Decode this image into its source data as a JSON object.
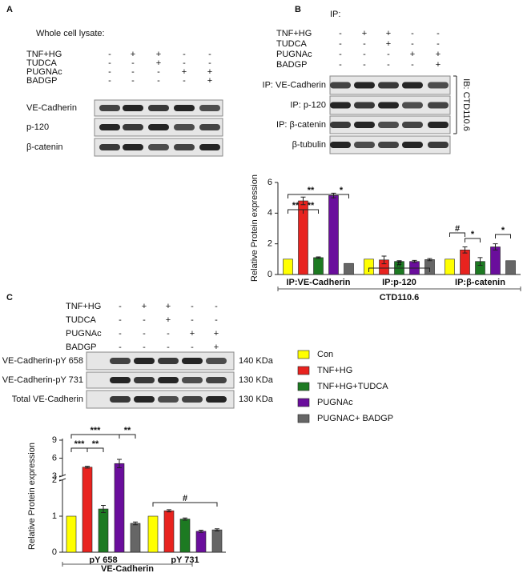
{
  "panels": [
    {
      "letter": "A",
      "title": "Whole cell lysate:",
      "conditions": [
        {
          "label": "TNF+HG",
          "signs": [
            "-",
            "+",
            "+",
            "-",
            "-"
          ]
        },
        {
          "label": "TUDCA",
          "signs": [
            "-",
            "-",
            "+",
            "-",
            "-"
          ]
        },
        {
          "label": "PUGNAc",
          "signs": [
            "-",
            "-",
            "-",
            "+",
            "+"
          ]
        },
        {
          "label": "BADGP",
          "signs": [
            "-",
            "-",
            "-",
            "-",
            "+"
          ]
        }
      ],
      "blots": [
        "VE-Cadherin",
        "p-120",
        "β-catenin"
      ]
    },
    {
      "letter": "B",
      "title": "IP:",
      "conditions": [
        {
          "label": "TNF+HG",
          "signs": [
            "-",
            "+",
            "+",
            "-",
            "-"
          ]
        },
        {
          "label": "TUDCA",
          "signs": [
            "-",
            "-",
            "+",
            "-",
            "-"
          ]
        },
        {
          "label": "PUGNAc",
          "signs": [
            "-",
            "-",
            "-",
            "+",
            "+"
          ]
        },
        {
          "label": "BADGP",
          "signs": [
            "-",
            "-",
            "-",
            "-",
            "+"
          ]
        }
      ],
      "blots": [
        "IP: VE-Cadherin",
        "IP: p-120",
        "IP: β-catenin",
        "β-tubulin"
      ],
      "ib_label": "IB: CTD110.6"
    },
    {
      "letter": "C",
      "conditions": [
        {
          "label": "TNF+HG",
          "signs": [
            "-",
            "+",
            "+",
            "-",
            "-"
          ]
        },
        {
          "label": "TUDCA",
          "signs": [
            "-",
            "-",
            "+",
            "-",
            "-"
          ]
        },
        {
          "label": "PUGNAc",
          "signs": [
            "-",
            "-",
            "-",
            "+",
            "+"
          ]
        },
        {
          "label": "BADGP",
          "signs": [
            "-",
            "-",
            "-",
            "-",
            "+"
          ]
        }
      ],
      "blots": [
        {
          "label": "VE-Cadherin-pY 658",
          "size": "140 KDa"
        },
        {
          "label": "VE-Cadherin-pY 731",
          "size": "130 KDa"
        },
        {
          "label": "Total VE-Cadherin",
          "size": "130 KDa"
        }
      ]
    }
  ],
  "chart_data": [
    {
      "type": "bar",
      "ylabel": "Relative Protein expression",
      "xlabel": "CTD110.6",
      "categories": [
        "IP:VE-Cadherin",
        "IP:p-120",
        "IP:β-catenin"
      ],
      "series": [
        {
          "name": "Con",
          "color": "#ffff00",
          "values": [
            1,
            1,
            1
          ],
          "errors": [
            0,
            0,
            0
          ]
        },
        {
          "name": "TNF+HG",
          "color": "#e8231f",
          "values": [
            4.8,
            0.95,
            1.6
          ],
          "errors": [
            0.25,
            0.25,
            0.2
          ]
        },
        {
          "name": "TNF+HG+TUDCA",
          "color": "#1d7a22",
          "values": [
            1.1,
            0.85,
            0.85
          ],
          "errors": [
            0.05,
            0.05,
            0.25
          ]
        },
        {
          "name": "PUGNAc",
          "color": "#6a0e9c",
          "values": [
            5.15,
            0.85,
            1.8
          ],
          "errors": [
            0.15,
            0.07,
            0.2
          ]
        },
        {
          "name": "PUGNAC+ BADGP",
          "color": "#666666",
          "values": [
            0.72,
            0.97,
            0.9
          ],
          "errors": [
            0,
            0.07,
            0
          ]
        }
      ],
      "ylim": [
        0,
        6
      ],
      "yticks": [
        0,
        2,
        4,
        6
      ],
      "annotations": [
        "**",
        "*",
        "**",
        "**",
        "#",
        "#",
        "*",
        "*"
      ]
    },
    {
      "type": "bar",
      "ylabel": "Relative Protein expression",
      "xlabel": "VE-Cadherin",
      "categories": [
        "pY 658",
        "pY 731"
      ],
      "series": [
        {
          "name": "Con",
          "color": "#ffff00",
          "values": [
            1,
            1
          ],
          "errors": [
            0,
            0
          ]
        },
        {
          "name": "TNF+HG",
          "color": "#e8231f",
          "values": [
            4.5,
            1.15
          ],
          "errors": [
            0.15,
            0.03
          ]
        },
        {
          "name": "TNF+HG+TUDCA",
          "color": "#1d7a22",
          "values": [
            1.2,
            0.92
          ],
          "errors": [
            0.1,
            0.03
          ]
        },
        {
          "name": "PUGNAc",
          "color": "#6a0e9c",
          "values": [
            5.1,
            0.58
          ],
          "errors": [
            0.7,
            0.03
          ]
        },
        {
          "name": "PUGNAC+ BADGP",
          "color": "#666666",
          "values": [
            0.8,
            0.62
          ],
          "errors": [
            0.04,
            0.03
          ]
        }
      ],
      "ylim": [
        0,
        9
      ],
      "ybreak": [
        2,
        3
      ],
      "yticks": [
        0,
        1,
        2,
        3,
        6,
        9
      ],
      "annotations": [
        "***",
        "**",
        "***",
        "**",
        "#"
      ]
    }
  ]
}
